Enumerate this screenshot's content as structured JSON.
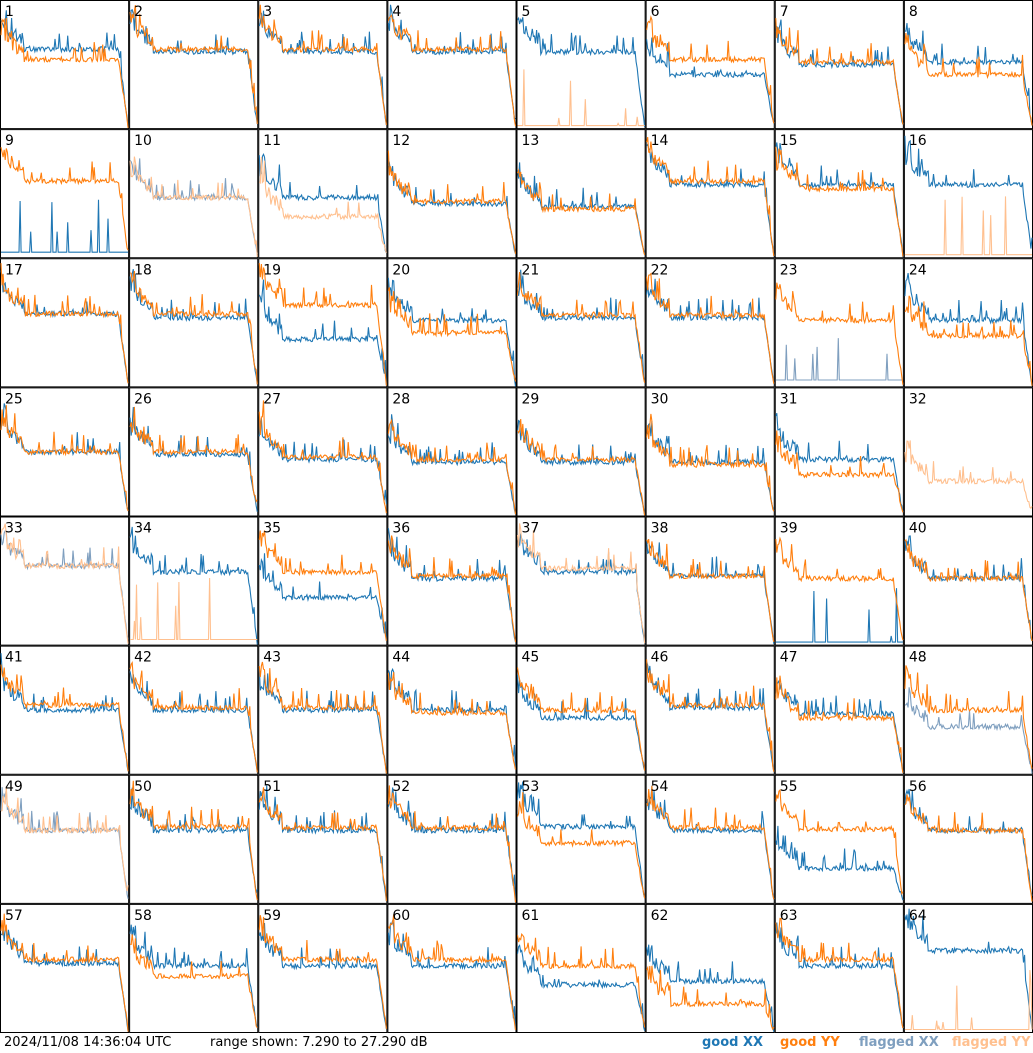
{
  "timestamp": "2024/11/08 14:36:04 UTC",
  "range_text": "range shown: 7.290 to 27.290 dB",
  "legend": [
    {
      "label_prefix": "good ",
      "pol": "XX",
      "color": "#1f77b4"
    },
    {
      "label_prefix": "good ",
      "pol": "YY",
      "color": "#ff7f0e"
    },
    {
      "label_prefix": "flagged ",
      "pol": "XX",
      "color": "#7f9fbf"
    },
    {
      "label_prefix": "flagged ",
      "pol": "YY",
      "color": "#ffc08f"
    }
  ],
  "chart_data": {
    "type": "line",
    "grid": "8x8 small multiples",
    "ylim_db": [
      7.29,
      27.29
    ],
    "tiles": [
      {
        "id": "1",
        "xx": "g",
        "yy": "g",
        "xx_level": 0.6,
        "yy_level": 0.52
      },
      {
        "id": "2",
        "xx": "g",
        "yy": "g",
        "xx_level": 0.58,
        "yy_level": 0.6
      },
      {
        "id": "3",
        "xx": "g",
        "yy": "g",
        "xx_level": 0.58,
        "yy_level": 0.6
      },
      {
        "id": "4",
        "xx": "g",
        "yy": "g",
        "xx_level": 0.58,
        "yy_level": 0.6
      },
      {
        "id": "5",
        "xx": "g",
        "yy": "dead",
        "xx_level": 0.58,
        "yy_level": 0.02
      },
      {
        "id": "6",
        "xx": "g",
        "yy": "g",
        "xx_level": 0.4,
        "yy_level": 0.52
      },
      {
        "id": "7",
        "xx": "g",
        "yy": "g",
        "xx_level": 0.48,
        "yy_level": 0.5
      },
      {
        "id": "8",
        "xx": "g",
        "yy": "g",
        "xx_level": 0.5,
        "yy_level": 0.4
      },
      {
        "id": "9",
        "xx": "dead",
        "yy": "g",
        "xx_level": 0.04,
        "yy_level": 0.58
      },
      {
        "id": "10",
        "xx": "f",
        "yy": "f",
        "xx_level": 0.45,
        "yy_level": 0.45
      },
      {
        "id": "11",
        "xx": "g",
        "yy": "f",
        "xx_level": 0.45,
        "yy_level": 0.3
      },
      {
        "id": "12",
        "xx": "g",
        "yy": "g",
        "xx_level": 0.4,
        "yy_level": 0.42
      },
      {
        "id": "13",
        "xx": "g",
        "yy": "g",
        "xx_level": 0.38,
        "yy_level": 0.36
      },
      {
        "id": "14",
        "xx": "g",
        "yy": "g",
        "xx_level": 0.55,
        "yy_level": 0.58
      },
      {
        "id": "15",
        "xx": "g",
        "yy": "g",
        "xx_level": 0.55,
        "yy_level": 0.52
      },
      {
        "id": "16",
        "xx": "g",
        "yy": "dead",
        "xx_level": 0.55,
        "yy_level": 0.02
      },
      {
        "id": "17",
        "xx": "g",
        "yy": "g",
        "xx_level": 0.55,
        "yy_level": 0.55
      },
      {
        "id": "18",
        "xx": "g",
        "yy": "g",
        "xx_level": 0.52,
        "yy_level": 0.55
      },
      {
        "id": "19",
        "xx": "g",
        "yy": "g",
        "xx_level": 0.35,
        "yy_level": 0.62
      },
      {
        "id": "20",
        "xx": "g",
        "yy": "g",
        "xx_level": 0.5,
        "yy_level": 0.4
      },
      {
        "id": "21",
        "xx": "g",
        "yy": "g",
        "xx_level": 0.52,
        "yy_level": 0.54
      },
      {
        "id": "22",
        "xx": "g",
        "yy": "g",
        "xx_level": 0.52,
        "yy_level": 0.54
      },
      {
        "id": "23",
        "xx": "flagdead",
        "yy": "g",
        "xx_level": 0.05,
        "yy_level": 0.5
      },
      {
        "id": "24",
        "xx": "g",
        "yy": "g",
        "xx_level": 0.5,
        "yy_level": 0.38
      },
      {
        "id": "25",
        "xx": "g",
        "yy": "g",
        "xx_level": 0.48,
        "yy_level": 0.48
      },
      {
        "id": "26",
        "xx": "g",
        "yy": "g",
        "xx_level": 0.46,
        "yy_level": 0.48
      },
      {
        "id": "27",
        "xx": "g",
        "yy": "g",
        "xx_level": 0.42,
        "yy_level": 0.44
      },
      {
        "id": "28",
        "xx": "g",
        "yy": "g",
        "xx_level": 0.4,
        "yy_level": 0.42
      },
      {
        "id": "29",
        "xx": "g",
        "yy": "g",
        "xx_level": 0.4,
        "yy_level": 0.42
      },
      {
        "id": "30",
        "xx": "g",
        "yy": "g",
        "xx_level": 0.4,
        "yy_level": 0.38
      },
      {
        "id": "31",
        "xx": "g",
        "yy": "g",
        "xx_level": 0.42,
        "yy_level": 0.3
      },
      {
        "id": "32",
        "xx": "none",
        "yy": "f",
        "xx_level": 0,
        "yy_level": 0.25
      },
      {
        "id": "33",
        "xx": "f",
        "yy": "f",
        "xx_level": 0.6,
        "yy_level": 0.6
      },
      {
        "id": "34",
        "xx": "g",
        "yy": "dead",
        "xx_level": 0.55,
        "yy_level": 0.04
      },
      {
        "id": "35",
        "xx": "g",
        "yy": "g",
        "xx_level": 0.35,
        "yy_level": 0.55
      },
      {
        "id": "36",
        "xx": "g",
        "yy": "g",
        "xx_level": 0.5,
        "yy_level": 0.52
      },
      {
        "id": "37",
        "xx": "g",
        "yy": "f",
        "xx_level": 0.55,
        "yy_level": 0.58
      },
      {
        "id": "38",
        "xx": "g",
        "yy": "g",
        "xx_level": 0.52,
        "yy_level": 0.52
      },
      {
        "id": "39",
        "xx": "dead",
        "yy": "g",
        "xx_level": 0.02,
        "yy_level": 0.5
      },
      {
        "id": "40",
        "xx": "g",
        "yy": "g",
        "xx_level": 0.5,
        "yy_level": 0.5
      },
      {
        "id": "41",
        "xx": "g",
        "yy": "g",
        "xx_level": 0.48,
        "yy_level": 0.52
      },
      {
        "id": "42",
        "xx": "g",
        "yy": "g",
        "xx_level": 0.48,
        "yy_level": 0.5
      },
      {
        "id": "43",
        "xx": "g",
        "yy": "g",
        "xx_level": 0.48,
        "yy_level": 0.5
      },
      {
        "id": "44",
        "xx": "g",
        "yy": "g",
        "xx_level": 0.48,
        "yy_level": 0.46
      },
      {
        "id": "45",
        "xx": "g",
        "yy": "g",
        "xx_level": 0.42,
        "yy_level": 0.48
      },
      {
        "id": "46",
        "xx": "g",
        "yy": "g",
        "xx_level": 0.5,
        "yy_level": 0.52
      },
      {
        "id": "47",
        "xx": "g",
        "yy": "g",
        "xx_level": 0.45,
        "yy_level": 0.42
      },
      {
        "id": "48",
        "xx": "f",
        "yy": "g",
        "xx_level": 0.35,
        "yy_level": 0.48
      },
      {
        "id": "49",
        "xx": "f",
        "yy": "f",
        "xx_level": 0.55,
        "yy_level": 0.55
      },
      {
        "id": "50",
        "xx": "g",
        "yy": "g",
        "xx_level": 0.55,
        "yy_level": 0.58
      },
      {
        "id": "51",
        "xx": "g",
        "yy": "g",
        "xx_level": 0.55,
        "yy_level": 0.57
      },
      {
        "id": "52",
        "xx": "g",
        "yy": "g",
        "xx_level": 0.55,
        "yy_level": 0.57
      },
      {
        "id": "53",
        "xx": "g",
        "yy": "g",
        "xx_level": 0.58,
        "yy_level": 0.45
      },
      {
        "id": "54",
        "xx": "g",
        "yy": "g",
        "xx_level": 0.55,
        "yy_level": 0.57
      },
      {
        "id": "55",
        "xx": "g",
        "yy": "g",
        "xx_level": 0.25,
        "yy_level": 0.56
      },
      {
        "id": "56",
        "xx": "g",
        "yy": "g",
        "xx_level": 0.55,
        "yy_level": 0.55
      },
      {
        "id": "57",
        "xx": "g",
        "yy": "g",
        "xx_level": 0.52,
        "yy_level": 0.55
      },
      {
        "id": "58",
        "xx": "g",
        "yy": "g",
        "xx_level": 0.5,
        "yy_level": 0.42
      },
      {
        "id": "59",
        "xx": "g",
        "yy": "g",
        "xx_level": 0.5,
        "yy_level": 0.55
      },
      {
        "id": "60",
        "xx": "g",
        "yy": "g",
        "xx_level": 0.5,
        "yy_level": 0.55
      },
      {
        "id": "61",
        "xx": "g",
        "yy": "g",
        "xx_level": 0.35,
        "yy_level": 0.5
      },
      {
        "id": "62",
        "xx": "g",
        "yy": "g",
        "xx_level": 0.38,
        "yy_level": 0.2
      },
      {
        "id": "63",
        "xx": "g",
        "yy": "g",
        "xx_level": 0.5,
        "yy_level": 0.55
      },
      {
        "id": "64",
        "xx": "g",
        "yy": "dead",
        "xx_level": 0.62,
        "yy_level": 0.02
      }
    ]
  }
}
